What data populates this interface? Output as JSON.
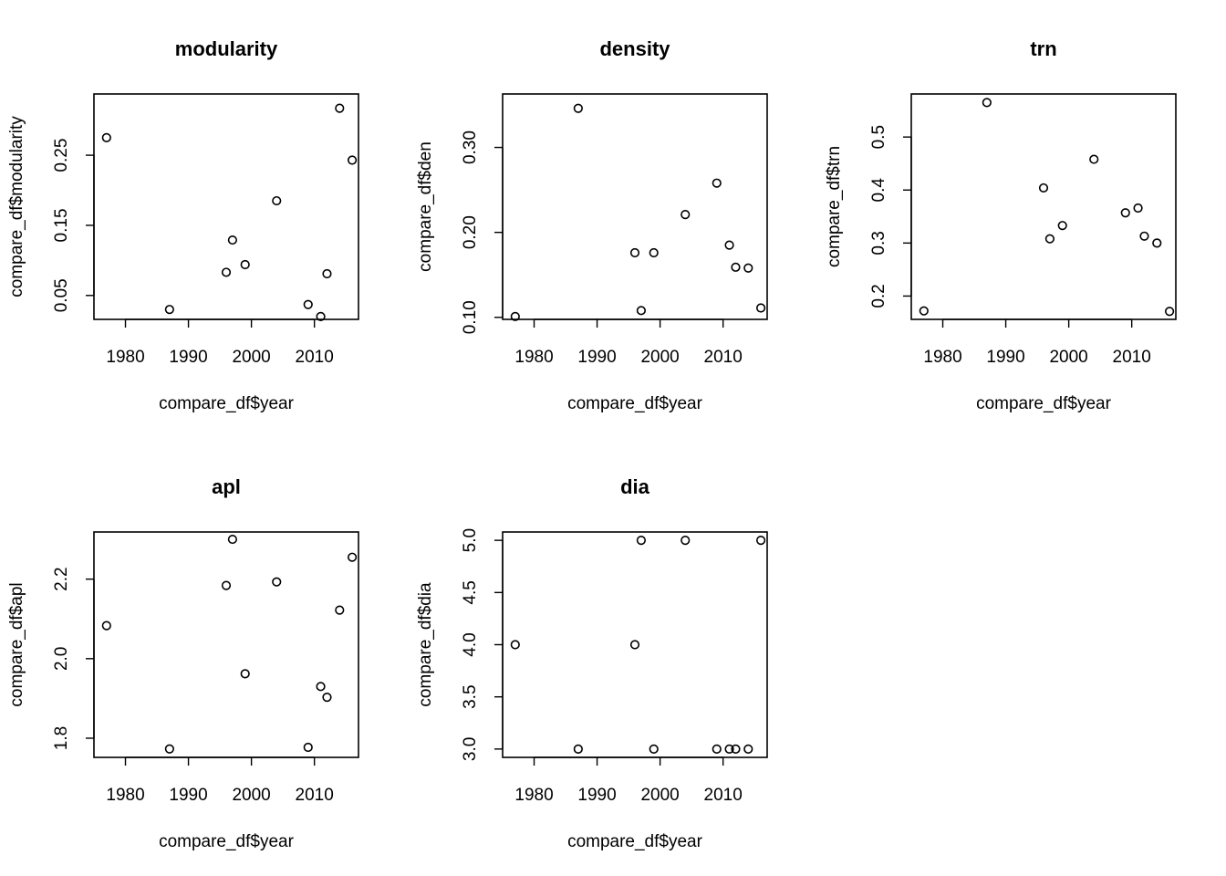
{
  "chart_data": [
    {
      "type": "scatter",
      "title": "modularity",
      "xlabel": "compare_df$year",
      "ylabel": "compare_df$modularity",
      "xlim": [
        1975,
        2017
      ],
      "ylim": [
        0.0159,
        0.3373
      ],
      "xticks": [
        1980,
        1990,
        2000,
        2010
      ],
      "yticks": [
        0.05,
        0.15,
        0.25
      ],
      "ytick_labels": [
        "0.05",
        "0.15",
        "0.25"
      ],
      "x": [
        1977,
        1987,
        1996,
        1997,
        1999,
        2004,
        2009,
        2011,
        2012,
        2014,
        2016
      ],
      "y": [
        0.275,
        0.03,
        0.083,
        0.129,
        0.094,
        0.185,
        0.037,
        0.02,
        0.081,
        0.317,
        0.243
      ]
    },
    {
      "type": "scatter",
      "title": "density",
      "xlabel": "compare_df$year",
      "ylabel": "compare_df$den",
      "xlim": [
        1975,
        2017
      ],
      "ylim": [
        0.0976,
        0.3629
      ],
      "xticks": [
        1980,
        1990,
        2000,
        2010
      ],
      "yticks": [
        0.1,
        0.2,
        0.3
      ],
      "ytick_labels": [
        "0.10",
        "0.20",
        "0.30"
      ],
      "x": [
        1977,
        1987,
        1996,
        1997,
        1999,
        2004,
        2009,
        2011,
        2012,
        2014,
        2016
      ],
      "y": [
        0.101,
        0.346,
        0.176,
        0.108,
        0.176,
        0.221,
        0.258,
        0.185,
        0.159,
        0.158,
        0.111
      ]
    },
    {
      "type": "scatter",
      "title": "trn",
      "xlabel": "compare_df$year",
      "ylabel": "compare_df$trn",
      "xlim": [
        1975,
        2017
      ],
      "ylim": [
        0.156,
        0.5812
      ],
      "xticks": [
        1980,
        1990,
        2000,
        2010
      ],
      "yticks": [
        0.2,
        0.3,
        0.4,
        0.5
      ],
      "ytick_labels": [
        "0.2",
        "0.3",
        "0.4",
        "0.5"
      ],
      "x": [
        1977,
        1987,
        1996,
        1997,
        1999,
        2004,
        2009,
        2011,
        2012,
        2014,
        2016
      ],
      "y": [
        0.172,
        0.565,
        0.404,
        0.308,
        0.333,
        0.458,
        0.357,
        0.366,
        0.313,
        0.3,
        0.171
      ]
    },
    {
      "type": "scatter",
      "title": "apl",
      "xlabel": "compare_df$year",
      "ylabel": "compare_df$apl",
      "xlim": [
        1975,
        2017
      ],
      "ylim": [
        1.7518,
        2.3185
      ],
      "xticks": [
        1980,
        1990,
        2000,
        2010
      ],
      "yticks": [
        1.8,
        2.0,
        2.2
      ],
      "ytick_labels": [
        "1.8",
        "2.0",
        "2.2"
      ],
      "x": [
        1977,
        1987,
        1996,
        1997,
        1999,
        2004,
        2009,
        2011,
        2012,
        2014,
        2016
      ],
      "y": [
        2.083,
        1.773,
        2.184,
        2.3,
        1.962,
        2.193,
        1.777,
        1.93,
        1.903,
        2.122,
        2.255
      ]
    },
    {
      "type": "scatter",
      "title": "dia",
      "xlabel": "compare_df$year",
      "ylabel": "compare_df$dia",
      "xlim": [
        1975,
        2017
      ],
      "ylim": [
        2.92,
        5.08
      ],
      "xticks": [
        1980,
        1990,
        2000,
        2010
      ],
      "yticks": [
        3.0,
        3.5,
        4.0,
        4.5,
        5.0
      ],
      "ytick_labels": [
        "3.0",
        "3.5",
        "4.0",
        "4.5",
        "5.0"
      ],
      "x": [
        1977,
        1987,
        1996,
        1997,
        1999,
        2004,
        2009,
        2011,
        2012,
        2014,
        2016
      ],
      "y": [
        4,
        3,
        4,
        5,
        3,
        5,
        3,
        3,
        3,
        3,
        5
      ]
    }
  ]
}
